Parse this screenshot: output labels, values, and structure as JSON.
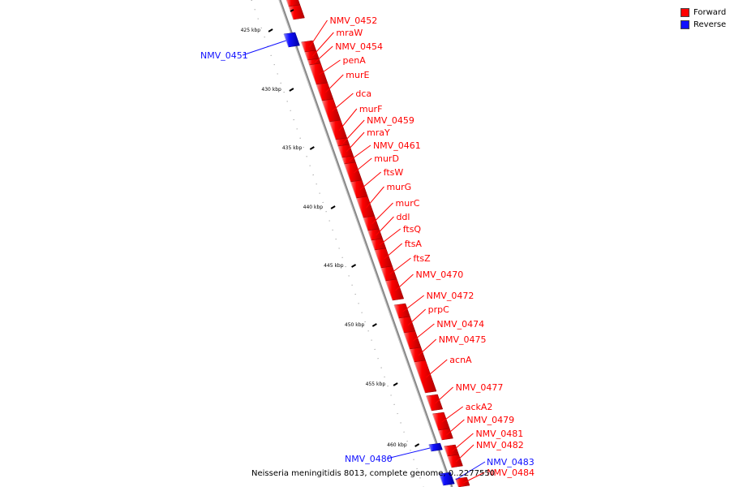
{
  "legend": [
    {
      "label": "Forward",
      "color": "#ff0000"
    },
    {
      "label": "Reverse",
      "color": "#1010ff"
    }
  ],
  "footer": {
    "genome": "Neisseria meningitidis 8013, complete genome",
    "range": "0..2277550"
  },
  "colors": {
    "forward": "#ff0000",
    "reverse": "#1010ff",
    "backbone": "#888888"
  },
  "ticks": [
    "425 kbp",
    "430 kbp",
    "435 kbp",
    "440 kbp",
    "445 kbp",
    "450 kbp",
    "455 kbp",
    "460 kbp"
  ],
  "forward_genes": [
    "NMV_0452",
    "mraW",
    "NMV_0454",
    "penA",
    "murE",
    "dca",
    "murF",
    "NMV_0459",
    "mraY",
    "NMV_0461",
    "murD",
    "ftsW",
    "murG",
    "murC",
    "ddl",
    "ftsQ",
    "ftsA",
    "ftsZ",
    "NMV_0470",
    "NMV_0472",
    "prpC",
    "NMV_0474",
    "NMV_0475",
    "acnA",
    "NMV_0477",
    "ackA2",
    "NMV_0479",
    "NMV_0481",
    "NMV_0482",
    "NMV_0484"
  ],
  "reverse_genes": [
    "NMV_0451",
    "NMV_0480",
    "NMV_0483"
  ]
}
